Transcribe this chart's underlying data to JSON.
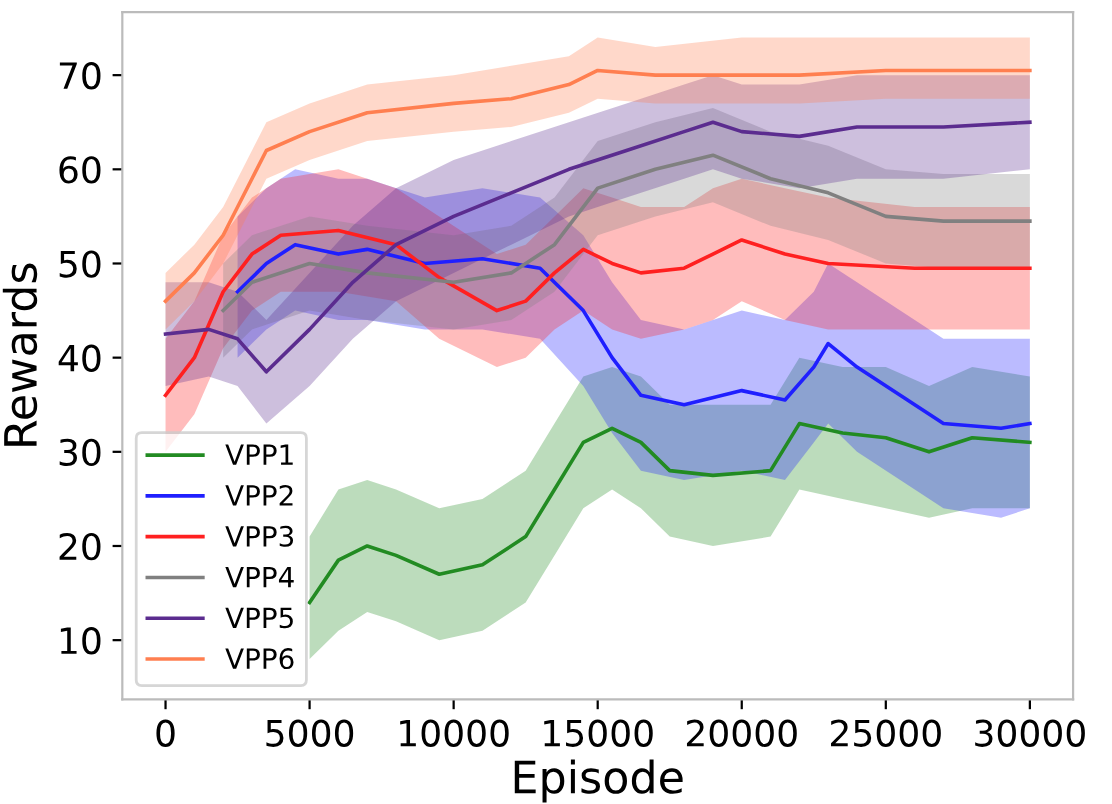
{
  "chart_data": {
    "type": "line",
    "xlabel": "Episode",
    "ylabel": "Rewards",
    "xlim": [
      -1500,
      31500
    ],
    "ylim": [
      3.7,
      76.7
    ],
    "xticks": [
      0,
      5000,
      10000,
      15000,
      20000,
      25000,
      30000
    ],
    "yticks": [
      10,
      20,
      30,
      40,
      50,
      60,
      70
    ],
    "grid": false,
    "legend": "bottom left",
    "series": [
      {
        "name": "VPP1",
        "color": "#228b22",
        "x": [
          5000,
          6000,
          7000,
          8000,
          9500,
          11000,
          12500,
          13500,
          14500,
          15500,
          16500,
          17500,
          19000,
          21000,
          22000,
          23500,
          25000,
          26500,
          28000,
          30000
        ],
        "values": [
          14,
          18.5,
          20,
          19,
          17,
          18,
          21,
          26,
          31,
          32.5,
          31,
          28,
          27.5,
          28,
          33,
          32,
          31.5,
          30,
          31.5,
          31
        ],
        "lower": [
          8,
          11,
          13,
          12,
          10,
          11,
          14,
          19,
          24,
          26,
          24,
          21,
          20,
          21,
          26,
          25,
          24,
          23,
          24,
          24
        ],
        "upper": [
          21,
          26,
          27,
          26,
          24,
          25,
          28,
          33,
          38,
          39,
          38,
          35,
          35,
          35,
          40,
          39,
          39,
          37,
          39,
          38
        ]
      },
      {
        "name": "VPP2",
        "color": "#1f1fff",
        "x": [
          2500,
          3500,
          4500,
          6000,
          7000,
          9000,
          11000,
          13000,
          14500,
          15500,
          16500,
          18000,
          20000,
          21500,
          22500,
          23000,
          24000,
          25500,
          27000,
          29000,
          30000
        ],
        "values": [
          47,
          50,
          52,
          51,
          51.5,
          50,
          50.5,
          49.5,
          45,
          40,
          36,
          35,
          36.5,
          35.5,
          39,
          41.5,
          39,
          36,
          33,
          32.5,
          33
        ],
        "lower": [
          40,
          43,
          45,
          44,
          44,
          43,
          43,
          42,
          37,
          32,
          28,
          27,
          28,
          27,
          31,
          33,
          30,
          27,
          24,
          23,
          24
        ],
        "upper": [
          55,
          58,
          60,
          59,
          59,
          57,
          58,
          57,
          53,
          48,
          44,
          43,
          45,
          44,
          47,
          50,
          48,
          45,
          42,
          42,
          42
        ]
      },
      {
        "name": "VPP3",
        "color": "#ff2020",
        "x": [
          0,
          1000,
          2000,
          3000,
          4000,
          6000,
          8000,
          9500,
          11500,
          12500,
          13500,
          14500,
          15500,
          16500,
          18000,
          19000,
          20000,
          21500,
          23000,
          26000,
          30000
        ],
        "values": [
          36,
          40,
          47,
          51,
          53,
          53.5,
          52,
          48.5,
          45,
          46,
          49,
          51.5,
          50,
          49,
          49.5,
          51,
          52.5,
          51,
          50,
          49.5,
          49.5
        ],
        "lower": [
          30,
          34,
          41,
          45,
          47,
          47,
          46,
          42,
          39,
          40,
          43,
          45,
          43,
          42,
          43,
          44,
          46,
          44,
          43,
          43,
          43
        ],
        "upper": [
          42,
          46,
          53,
          57,
          59,
          60,
          58,
          55,
          51,
          52,
          55,
          58,
          57,
          56,
          56,
          58,
          59,
          58,
          57,
          56,
          56
        ]
      },
      {
        "name": "VPP4",
        "color": "#808080",
        "x": [
          2000,
          3000,
          5000,
          7000,
          10000,
          12000,
          13500,
          15000,
          17000,
          19000,
          21000,
          23000,
          25000,
          27000,
          30000
        ],
        "values": [
          45,
          48,
          50,
          49,
          48,
          49,
          52,
          58,
          60,
          61.5,
          59,
          57.5,
          55,
          54.5,
          54.5
        ],
        "lower": [
          40,
          43,
          45,
          44,
          43,
          44,
          47,
          53,
          55,
          56.5,
          54,
          52.5,
          50,
          49.5,
          49.5
        ],
        "upper": [
          50,
          53,
          55,
          54,
          53,
          54,
          57,
          63,
          65,
          66.5,
          64,
          62.5,
          60,
          59.5,
          59.5
        ]
      },
      {
        "name": "VPP5",
        "color": "#5b2c8f",
        "x": [
          0,
          1500,
          2500,
          3500,
          5000,
          6500,
          8000,
          10000,
          12000,
          14000,
          16000,
          18000,
          19000,
          20000,
          22000,
          24000,
          27000,
          30000
        ],
        "values": [
          42.5,
          43,
          42,
          38.5,
          43,
          48,
          52,
          55,
          57.5,
          60,
          62,
          64,
          65,
          64,
          63.5,
          64.5,
          64.5,
          65
        ],
        "lower": [
          37,
          38,
          37,
          33,
          37,
          42,
          46,
          49,
          52,
          55,
          57,
          59,
          60,
          59,
          58,
          59,
          59,
          60
        ],
        "upper": [
          48,
          48,
          47,
          44,
          49,
          54,
          58,
          61,
          63,
          65,
          67,
          69,
          70,
          69,
          69,
          70,
          70,
          70
        ]
      },
      {
        "name": "VPP6",
        "color": "#ff7f50",
        "x": [
          0,
          1000,
          2000,
          3000,
          3500,
          5000,
          7000,
          10000,
          12000,
          14000,
          15000,
          17000,
          20000,
          22000,
          25000,
          28000,
          30000
        ],
        "values": [
          46,
          49,
          53,
          59,
          62,
          64,
          66,
          67,
          67.5,
          69,
          70.5,
          70,
          70,
          70,
          70.5,
          70.5,
          70.5
        ],
        "lower": [
          43,
          46,
          50,
          56,
          59,
          61,
          63,
          64,
          64.5,
          66,
          67.5,
          67,
          67,
          67,
          67.5,
          67.5,
          67.5
        ],
        "upper": [
          49,
          52,
          56,
          62,
          65,
          67,
          69,
          70,
          71,
          72,
          74,
          73,
          74,
          74,
          74,
          74,
          74
        ]
      }
    ]
  }
}
